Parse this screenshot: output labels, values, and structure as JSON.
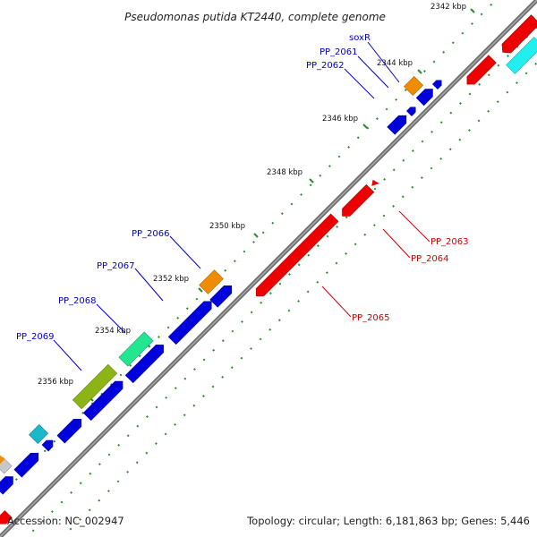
{
  "title": "Pseudomonas putida KT2440, complete genome",
  "footer": {
    "accession": "Accession: NC_002947",
    "summary": "Topology: circular; Length: 6,181,863 bp; Genes: 5,446"
  },
  "ticks": [
    "2342 kbp",
    "2344 kbp",
    "2346 kbp",
    "2348 kbp",
    "2350 kbp",
    "2352 kbp",
    "2354 kbp",
    "2356 kbp"
  ],
  "gene_labels": {
    "soxR": "soxR",
    "pp2061": "PP_2061",
    "pp2062": "PP_2062",
    "pp2063": "PP_2063",
    "pp2064": "PP_2064",
    "pp2065": "PP_2065",
    "pp2066": "PP_2066",
    "pp2067": "PP_2067",
    "pp2068": "PP_2068",
    "pp2069": "PP_2069"
  },
  "colors": {
    "forward_gene": "#0000ee",
    "reverse_gene": "#ee0000",
    "orange_gene": "#f08c00",
    "teal_gene": "#1ab8c8",
    "cyan_gene": "#22eeee",
    "green_gene": "#22e690",
    "olive_gene": "#8cb414",
    "backbone": "#808080",
    "ticks": "#2a8a2a"
  }
}
